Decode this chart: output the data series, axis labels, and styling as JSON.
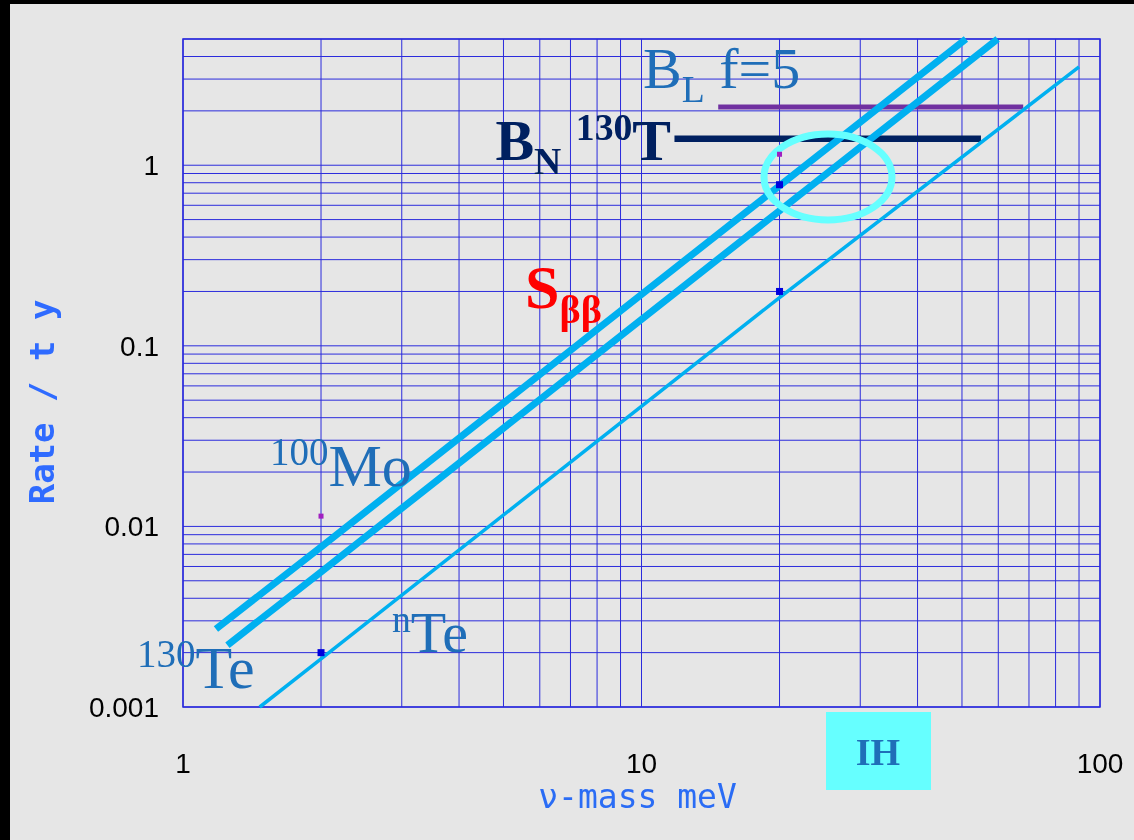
{
  "chart_data": {
    "type": "line",
    "log": "xy",
    "grid": true,
    "xlabel": "ν-mass meV",
    "ylabel": "Rate / t y",
    "xlim": [
      1,
      100
    ],
    "ylim": [
      0.001,
      5
    ],
    "xticks": [
      1,
      {
        "value": 2,
        "label": null
      },
      {
        "value": 3,
        "label": null
      },
      {
        "value": 4,
        "label": null
      },
      {
        "value": 5,
        "label": null
      },
      {
        "value": 6,
        "label": null
      },
      {
        "value": 7,
        "label": null
      },
      {
        "value": 8,
        "label": null
      },
      {
        "value": 9,
        "label": null
      },
      10,
      {
        "value": 20,
        "label": null
      },
      {
        "value": 30,
        "label": null
      },
      {
        "value": 40,
        "label": null
      },
      {
        "value": 50,
        "label": null
      },
      {
        "value": 60,
        "label": null
      },
      {
        "value": 70,
        "label": null
      },
      {
        "value": 80,
        "label": null
      },
      {
        "value": 90,
        "label": null
      },
      100
    ],
    "yticks": [
      0.001,
      {
        "value": 0.002,
        "label": null
      },
      {
        "value": 0.003,
        "label": null
      },
      {
        "value": 0.004,
        "label": null
      },
      {
        "value": 0.005,
        "label": null
      },
      {
        "value": 0.006,
        "label": null
      },
      {
        "value": 0.007,
        "label": null
      },
      {
        "value": 0.008,
        "label": null
      },
      {
        "value": 0.009,
        "label": null
      },
      0.01,
      {
        "value": 0.02,
        "label": null
      },
      {
        "value": 0.03,
        "label": null
      },
      {
        "value": 0.04,
        "label": null
      },
      {
        "value": 0.05,
        "label": null
      },
      {
        "value": 0.06,
        "label": null
      },
      {
        "value": 0.07,
        "label": null
      },
      {
        "value": 0.08,
        "label": null
      },
      {
        "value": 0.09,
        "label": null
      },
      0.1,
      {
        "value": 0.2,
        "label": null
      },
      {
        "value": 0.3,
        "label": null
      },
      {
        "value": 0.4,
        "label": null
      },
      {
        "value": 0.5,
        "label": null
      },
      {
        "value": 0.6,
        "label": null
      },
      {
        "value": 0.7,
        "label": null
      },
      {
        "value": 0.8,
        "label": null
      },
      {
        "value": 0.9,
        "label": null
      },
      1,
      {
        "value": 2,
        "label": null
      },
      {
        "value": 3,
        "label": null
      },
      {
        "value": 4,
        "label": null
      },
      {
        "value": 5,
        "label": null
      }
    ],
    "series": [
      {
        "name": "B$_{L}$ f=5",
        "color": "#7030a0",
        "x": [
          14.7,
          68
        ],
        "values": [
          2.1,
          2.1
        ]
      },
      {
        "name": "B$_{N}$ $^{130}$T",
        "color": "#002060",
        "x": [
          11.8,
          55
        ],
        "values": [
          1.4,
          1.4
        ]
      },
      {
        "name": "$^{100}$Mo",
        "color": "#00b0f0",
        "x": [
          1.18,
          2,
          20,
          51
        ],
        "values": [
          0.0027,
          0.0077,
          0.77,
          5
        ]
      },
      {
        "name": "$^{130}$Te",
        "color": "#00b0f0",
        "x": [
          1.25,
          2,
          20,
          59.8
        ],
        "values": [
          0.0022,
          0.0056,
          0.56,
          5
        ]
      },
      {
        "name": "$^{n}$Te",
        "color": "#00b0f0",
        "x": [
          1.47,
          2,
          20,
          90
        ],
        "values": [
          0.001,
          0.00185,
          0.185,
          3.5
        ]
      },
      {
        "type": "scatter",
        "marker": "square",
        "color": "#0000dd",
        "x": [
          2,
          20,
          20
        ],
        "values": [
          0.002,
          0.2,
          0.78
        ]
      },
      {
        "type": "scatter",
        "marker": "square",
        "color": "#a020c0",
        "x": [
          2,
          20
        ],
        "values": [
          0.0114,
          1.15
        ]
      }
    ],
    "annotations": [
      "S$_{ββ}$",
      "IH"
    ]
  }
}
